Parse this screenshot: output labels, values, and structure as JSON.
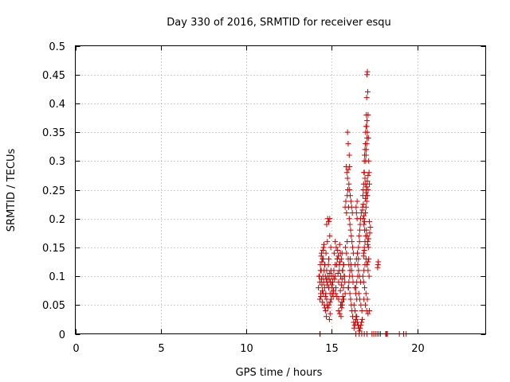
{
  "chart_data": {
    "type": "scatter",
    "title": "Day 330 of 2016, SRMTID for receiver esqu",
    "xlabel": "GPS time / hours",
    "ylabel": "SRMTID / TECUs",
    "xlim": [
      0,
      24
    ],
    "ylim": [
      0,
      0.5
    ],
    "xticks": [
      0,
      5,
      10,
      15,
      20
    ],
    "xtick_labels": [
      "0",
      "5",
      "10",
      "15",
      "20"
    ],
    "yticks": [
      0,
      0.05,
      0.1,
      0.15,
      0.2,
      0.25,
      0.3,
      0.35,
      0.4,
      0.45,
      0.5
    ],
    "ytick_labels": [
      "0",
      "0.05",
      "0.1",
      "0.15",
      "0.2",
      "0.25",
      "0.3",
      "0.35",
      "0.4",
      "0.45",
      "0.5"
    ],
    "grid": true,
    "marker": "plus",
    "marker_color": "#cc0000",
    "series": [
      {
        "name": "SRMTID",
        "x": [
          14.22,
          14.25,
          14.3,
          14.33,
          14.35,
          14.38,
          14.4,
          14.42,
          14.45,
          14.48,
          14.5,
          14.52,
          14.55,
          14.58,
          14.6,
          14.62,
          14.65,
          14.68,
          14.7,
          14.72,
          14.75,
          14.78,
          14.8,
          14.82,
          14.85,
          14.88,
          14.9,
          14.92,
          14.95,
          14.98,
          15.0,
          15.02,
          15.05,
          15.08,
          15.1,
          14.3,
          14.36,
          14.44,
          14.5,
          14.56,
          14.62,
          14.7,
          14.78,
          14.84,
          14.9,
          14.96,
          15.02,
          15.08,
          14.4,
          14.46,
          14.52,
          14.58,
          14.66,
          14.74,
          14.82,
          14.88,
          14.94,
          14.7,
          14.76,
          14.82,
          14.88,
          14.86,
          14.9,
          14.6,
          14.64,
          14.68,
          14.72,
          14.54,
          14.48,
          14.42,
          14.38,
          14.34,
          14.28,
          15.12,
          15.16,
          15.2,
          15.24,
          15.28,
          15.32,
          15.36,
          15.4,
          15.44,
          15.48,
          15.52,
          15.56,
          15.6,
          15.64,
          15.68,
          15.72,
          15.76,
          15.14,
          15.2,
          15.26,
          15.32,
          15.38,
          15.44,
          15.5,
          15.56,
          15.62,
          15.68,
          15.74,
          15.22,
          15.3,
          15.4,
          15.5,
          15.58,
          15.66,
          15.2,
          15.34,
          15.46,
          15.6,
          15.7,
          15.52,
          15.58,
          15.64,
          15.4,
          15.46,
          15.54,
          15.62,
          15.7,
          15.78,
          15.78,
          15.82,
          15.86,
          15.9,
          15.94,
          15.98,
          16.02,
          16.06,
          16.1,
          16.14,
          16.18,
          16.22,
          16.26,
          15.84,
          15.88,
          15.92,
          15.96,
          16.0,
          16.04,
          16.08,
          16.12,
          16.16,
          16.2,
          15.8,
          15.86,
          15.9,
          15.96,
          16.0,
          16.06,
          15.92,
          15.96,
          16.02,
          16.04,
          15.98,
          16.06,
          16.1,
          16.14,
          16.18,
          16.22,
          16.28,
          16.24,
          16.2,
          16.16,
          16.12,
          16.08,
          16.04,
          16.0,
          15.96,
          16.3,
          16.34,
          16.38,
          16.42,
          16.46,
          16.5,
          16.54,
          16.58,
          16.62,
          16.66,
          16.7,
          16.74,
          16.78,
          16.4,
          16.46,
          16.52,
          16.58,
          16.64,
          16.7,
          16.76,
          16.36,
          16.44,
          16.5,
          16.56,
          16.62,
          16.68,
          16.6,
          16.62,
          16.64,
          16.66,
          16.68,
          16.72,
          16.56,
          16.5,
          16.48,
          16.44,
          16.42,
          16.48,
          16.52,
          16.56,
          16.46,
          16.4,
          16.34,
          16.3,
          16.36,
          16.42,
          16.8,
          16.82,
          16.84,
          16.86,
          16.88,
          16.9,
          16.92,
          16.94,
          16.96,
          16.98,
          17.0,
          17.02,
          17.04,
          17.06,
          17.08,
          17.1,
          17.12,
          17.14,
          17.16,
          17.18,
          17.2,
          16.84,
          16.88,
          16.92,
          16.96,
          17.0,
          17.04,
          17.08,
          17.12,
          16.86,
          16.9,
          16.94,
          16.98,
          17.02,
          17.06,
          17.1,
          17.14,
          16.82,
          16.88,
          16.94,
          17.0,
          17.06,
          17.12,
          17.18,
          16.98,
          17.0,
          17.02,
          17.04,
          17.06,
          17.08,
          17.04,
          17.06,
          16.9,
          16.94,
          16.98,
          17.02,
          17.06,
          16.86,
          16.92,
          17.0,
          17.08,
          16.88,
          16.96,
          17.04,
          17.12,
          17.2,
          16.8,
          16.84,
          16.88,
          16.92,
          16.96,
          17.0,
          17.04,
          17.08,
          17.12,
          16.86,
          16.9,
          17.1,
          17.16,
          17.22,
          17.26,
          17.2,
          17.16,
          17.12,
          17.7,
          17.72,
          17.68,
          14.3,
          14.32,
          16.4,
          16.6,
          16.75,
          16.9,
          17.05,
          17.35,
          17.45,
          17.55,
          17.65,
          17.75,
          17.85,
          18.15,
          18.2,
          18.25,
          18.95,
          19.2,
          19.35
        ],
        "y": [
          0.08,
          0.1,
          0.09,
          0.12,
          0.07,
          0.11,
          0.095,
          0.085,
          0.075,
          0.1,
          0.13,
          0.09,
          0.11,
          0.08,
          0.12,
          0.1,
          0.07,
          0.095,
          0.11,
          0.085,
          0.09,
          0.1,
          0.12,
          0.08,
          0.095,
          0.105,
          0.07,
          0.09,
          0.11,
          0.1,
          0.085,
          0.08,
          0.09,
          0.1,
          0.075,
          0.06,
          0.065,
          0.055,
          0.07,
          0.05,
          0.065,
          0.06,
          0.045,
          0.05,
          0.055,
          0.06,
          0.07,
          0.065,
          0.14,
          0.13,
          0.15,
          0.12,
          0.14,
          0.16,
          0.13,
          0.17,
          0.15,
          0.19,
          0.2,
          0.195,
          0.2,
          0.025,
          0.035,
          0.045,
          0.04,
          0.03,
          0.05,
          0.155,
          0.145,
          0.125,
          0.135,
          0.11,
          0.1,
          0.11,
          0.095,
          0.1,
          0.08,
          0.12,
          0.13,
          0.105,
          0.09,
          0.11,
          0.125,
          0.1,
          0.085,
          0.095,
          0.11,
          0.08,
          0.1,
          0.09,
          0.14,
          0.12,
          0.15,
          0.13,
          0.135,
          0.12,
          0.14,
          0.13,
          0.11,
          0.12,
          0.1,
          0.07,
          0.065,
          0.06,
          0.075,
          0.055,
          0.06,
          0.16,
          0.145,
          0.155,
          0.14,
          0.12,
          0.05,
          0.045,
          0.065,
          0.04,
          0.035,
          0.03,
          0.05,
          0.06,
          0.07,
          0.22,
          0.23,
          0.21,
          0.24,
          0.25,
          0.22,
          0.2,
          0.19,
          0.18,
          0.17,
          0.16,
          0.15,
          0.14,
          0.29,
          0.28,
          0.27,
          0.285,
          0.26,
          0.25,
          0.24,
          0.23,
          0.22,
          0.21,
          0.15,
          0.14,
          0.16,
          0.13,
          0.12,
          0.11,
          0.35,
          0.33,
          0.31,
          0.29,
          0.08,
          0.07,
          0.06,
          0.05,
          0.04,
          0.03,
          0.02,
          0.09,
          0.1,
          0.11,
          0.12,
          0.13,
          0.1,
          0.09,
          0.08,
          0.01,
          0.015,
          0.02,
          0.025,
          0.03,
          0.02,
          0.015,
          0.01,
          0.005,
          0.01,
          0.015,
          0.02,
          0.025,
          0.08,
          0.09,
          0.1,
          0.07,
          0.06,
          0.05,
          0.04,
          0.12,
          0.13,
          0.14,
          0.11,
          0.1,
          0.09,
          0.17,
          0.16,
          0.18,
          0.19,
          0.2,
          0.21,
          0.15,
          0.14,
          0.2,
          0.21,
          0.22,
          0.23,
          0.12,
          0.13,
          0.06,
          0.07,
          0.08,
          0.05,
          0.04,
          0.03,
          0.22,
          0.24,
          0.25,
          0.26,
          0.28,
          0.3,
          0.31,
          0.32,
          0.33,
          0.35,
          0.36,
          0.38,
          0.41,
          0.45,
          0.455,
          0.42,
          0.38,
          0.34,
          0.3,
          0.28,
          0.26,
          0.2,
          0.19,
          0.18,
          0.21,
          0.22,
          0.23,
          0.24,
          0.25,
          0.14,
          0.15,
          0.16,
          0.17,
          0.18,
          0.17,
          0.16,
          0.15,
          0.1,
          0.11,
          0.12,
          0.13,
          0.12,
          0.11,
          0.1,
          0.3,
          0.31,
          0.32,
          0.33,
          0.34,
          0.35,
          0.36,
          0.37,
          0.28,
          0.27,
          0.26,
          0.25,
          0.24,
          0.09,
          0.08,
          0.07,
          0.06,
          0.06,
          0.05,
          0.04,
          0.035,
          0.04,
          0.215,
          0.225,
          0.205,
          0.195,
          0.235,
          0.245,
          0.255,
          0.265,
          0.275,
          0.135,
          0.145,
          0.155,
          0.165,
          0.175,
          0.185,
          0.195,
          0.13,
          0.125,
          0.12,
          0.125,
          0.115,
          0,
          0,
          0,
          0,
          0,
          0,
          0,
          0,
          0,
          0,
          0,
          0,
          0,
          0,
          0,
          0,
          0,
          0,
          0
        ]
      }
    ]
  }
}
